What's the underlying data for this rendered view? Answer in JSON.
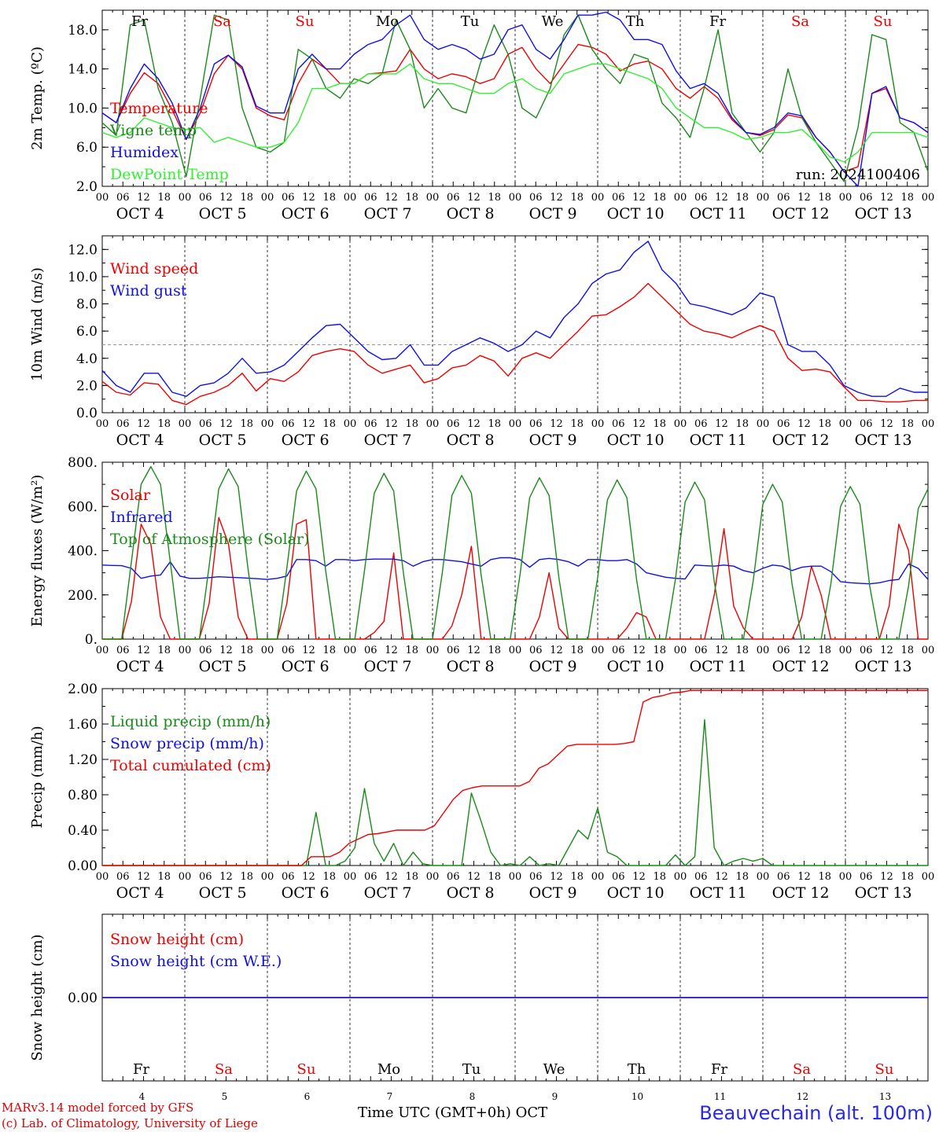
{
  "colors": {
    "red": "#ee0000",
    "blue": "#1010e0",
    "green": "#1a8a1a",
    "lightgreen": "#33ee33",
    "black": "#000000",
    "purple": "#6a0a8a",
    "dashed": "#999999"
  },
  "x_hour_labels": [
    "00",
    "06",
    "12",
    "18"
  ],
  "x_final_hour_label": "00",
  "date_labels": [
    "OCT  4",
    "OCT  5",
    "OCT  6",
    "OCT  7",
    "OCT  8",
    "OCT  9",
    "OCT 10",
    "OCT 11",
    "OCT 12",
    "OCT 13"
  ],
  "day_names": [
    {
      "label": "Fr",
      "color": "black"
    },
    {
      "label": "Sa",
      "color": "red"
    },
    {
      "label": "Su",
      "color": "red"
    },
    {
      "label": "Mo",
      "color": "black"
    },
    {
      "label": "Tu",
      "color": "black"
    },
    {
      "label": "We",
      "color": "black"
    },
    {
      "label": "Th",
      "color": "black"
    },
    {
      "label": "Fr",
      "color": "black"
    },
    {
      "label": "Sa",
      "color": "red"
    },
    {
      "label": "Su",
      "color": "red"
    }
  ],
  "day_numbers": [
    "4",
    "5",
    "6",
    "7",
    "8",
    "9",
    "10",
    "11",
    "12",
    "13"
  ],
  "footer": {
    "model": "MARv3.14 model forced by GFS",
    "lab": "(c) Lab. of Climatology, University of Liege",
    "time_axis": "Time UTC (GMT+0h) OCT",
    "station": "Beauvechain (alt. 100m)"
  },
  "chart_data": [
    {
      "type": "line",
      "ylabel": "2m Temp. (ºC)",
      "ylim": [
        2,
        20
      ],
      "yticks": [
        "2.0",
        "6.0",
        "10.0",
        "14.0",
        "18.0"
      ],
      "ytick_values": [
        2,
        6,
        10,
        14,
        18
      ],
      "show_day_names": true,
      "annotation": "run: 2024100406",
      "x_step_hours": 6,
      "series": [
        {
          "name": "Temperature",
          "color": "red",
          "values": [
            9.5,
            8.5,
            11.5,
            13.6,
            12.5,
            9.8,
            6.8,
            9.5,
            13.5,
            15.4,
            14.0,
            10.0,
            9.2,
            8.8,
            12.5,
            15.0,
            14.0,
            12.5,
            12.5,
            13.5,
            13.6,
            13.8,
            16.0,
            14.0,
            13.0,
            13.5,
            13.2,
            12.5,
            13.0,
            15.5,
            16.2,
            14.0,
            12.5,
            14.5,
            16.5,
            16.2,
            15.5,
            13.8,
            14.5,
            14.8,
            14.0,
            12.0,
            11.0,
            12.2,
            11.0,
            8.8,
            7.5,
            7.2,
            7.8,
            9.3,
            9.0,
            7.0,
            5.5,
            3.5,
            4.0,
            11.5,
            12.0,
            9.0,
            8.5,
            7.5
          ]
        },
        {
          "name": "Vigne temp",
          "color": "green",
          "values": [
            8.5,
            7.2,
            18.5,
            19.0,
            12.0,
            8.5,
            3.0,
            11.0,
            19.5,
            19.0,
            10.0,
            6.0,
            5.5,
            6.5,
            16.0,
            15.0,
            12.0,
            11.0,
            13.0,
            12.5,
            13.5,
            19.0,
            16.0,
            10.0,
            12.0,
            10.0,
            9.5,
            14.5,
            18.5,
            15.5,
            10.0,
            9.0,
            12.0,
            17.5,
            19.5,
            16.0,
            14.0,
            12.5,
            15.5,
            15.0,
            10.5,
            9.0,
            7.0,
            12.0,
            18.0,
            9.5,
            7.5,
            5.5,
            7.5,
            14.0,
            9.0,
            6.5,
            4.5,
            2.5,
            8.0,
            17.5,
            17.0,
            8.5,
            7.5,
            3.5
          ]
        },
        {
          "name": "Humidex",
          "color": "blue",
          "values": [
            9.5,
            8.5,
            12.0,
            14.5,
            13.0,
            10.5,
            6.8,
            10.0,
            14.5,
            15.4,
            14.2,
            10.2,
            9.5,
            9.5,
            14.0,
            15.5,
            14.0,
            14.0,
            15.5,
            16.5,
            17.0,
            18.5,
            19.5,
            17.0,
            16.0,
            16.5,
            16.0,
            15.0,
            15.5,
            18.0,
            18.5,
            16.0,
            15.0,
            17.0,
            19.5,
            19.5,
            19.8,
            19.0,
            17.0,
            17.0,
            16.5,
            13.8,
            12.0,
            12.5,
            11.5,
            9.0,
            7.5,
            7.3,
            8.0,
            9.5,
            9.2,
            7.0,
            5.5,
            3.5,
            2.0,
            11.5,
            12.2,
            9.0,
            8.5,
            7.5
          ]
        },
        {
          "name": "DewPoint Temp",
          "color": "lightgreen",
          "values": [
            7.5,
            7.0,
            7.5,
            9.0,
            8.5,
            8.0,
            7.8,
            8.0,
            6.5,
            7.0,
            6.5,
            6.0,
            6.0,
            6.5,
            8.5,
            12.0,
            12.0,
            12.5,
            12.5,
            13.5,
            13.5,
            13.5,
            14.5,
            13.0,
            12.5,
            12.5,
            12.0,
            11.5,
            11.5,
            12.5,
            13.0,
            12.0,
            11.5,
            13.5,
            14.0,
            14.5,
            14.5,
            14.0,
            13.5,
            13.0,
            12.0,
            10.0,
            9.0,
            8.0,
            8.0,
            7.5,
            6.8,
            7.0,
            7.5,
            7.5,
            7.8,
            6.5,
            5.0,
            4.5,
            5.5,
            7.5,
            7.5,
            7.5,
            7.5,
            7.0
          ]
        }
      ],
      "legend": [
        "Temperature",
        "Vigne temp",
        "Humidex",
        "DewPoint Temp"
      ],
      "legend_colors": [
        "red",
        "green",
        "blue",
        "lightgreen"
      ]
    },
    {
      "type": "line",
      "ylabel": "10m Wind (m/s)",
      "ylim": [
        0,
        13
      ],
      "yticks": [
        "0.0",
        "2.0",
        "4.0",
        "6.0",
        "8.0",
        "10.0",
        "12.0"
      ],
      "ytick_values": [
        0,
        2,
        4,
        6,
        8,
        10,
        12
      ],
      "reference_line": 5,
      "x_step_hours": 6,
      "series": [
        {
          "name": "Wind speed",
          "color": "red",
          "values": [
            2.3,
            1.5,
            1.3,
            2.2,
            2.1,
            0.9,
            0.6,
            1.2,
            1.5,
            2.0,
            2.9,
            1.6,
            2.5,
            2.3,
            3.0,
            4.2,
            4.5,
            4.7,
            4.5,
            3.5,
            2.9,
            3.2,
            3.5,
            2.2,
            2.5,
            3.3,
            3.5,
            4.2,
            3.8,
            2.7,
            4.0,
            4.4,
            4.0,
            5.0,
            6.0,
            7.1,
            7.2,
            7.8,
            8.5,
            9.5,
            8.5,
            7.5,
            6.5,
            6.0,
            5.8,
            5.5,
            6.0,
            6.4,
            6.0,
            4.0,
            3.1,
            3.2,
            3.0,
            1.9,
            0.9,
            0.9,
            0.8,
            0.8,
            0.9,
            0.9
          ]
        },
        {
          "name": "Wind gust",
          "color": "blue",
          "values": [
            3.1,
            2.0,
            1.5,
            2.9,
            2.9,
            1.5,
            1.2,
            2.0,
            2.2,
            2.9,
            4.0,
            2.9,
            3.0,
            3.5,
            4.5,
            5.5,
            6.4,
            6.5,
            5.5,
            4.5,
            3.9,
            4.0,
            5.0,
            3.5,
            3.5,
            4.5,
            5.0,
            5.5,
            5.1,
            4.5,
            5.0,
            6.0,
            5.5,
            7.0,
            8.0,
            9.5,
            10.2,
            10.5,
            11.8,
            12.6,
            10.5,
            9.5,
            8.0,
            7.8,
            7.5,
            7.2,
            7.7,
            8.8,
            8.5,
            5.0,
            4.5,
            4.5,
            3.5,
            2.0,
            1.5,
            1.2,
            1.2,
            1.8,
            1.5,
            1.5
          ]
        }
      ],
      "legend": [
        "Wind speed",
        "Wind gust"
      ],
      "legend_colors": [
        "red",
        "blue"
      ]
    },
    {
      "type": "line",
      "ylabel": "Energy fluxes (W/m²)",
      "ylim": [
        0,
        800
      ],
      "yticks": [
        "0.",
        "200.",
        "400.",
        "600.",
        "800."
      ],
      "ytick_values": [
        0,
        200,
        400,
        600,
        800
      ],
      "x_step_hours": 3,
      "series": [
        {
          "name": "Solar",
          "color": "red",
          "values": [
            0,
            0,
            0,
            170,
            520,
            430,
            100,
            0,
            0,
            0,
            0,
            160,
            550,
            430,
            100,
            0,
            0,
            0,
            0,
            160,
            520,
            540,
            0,
            0,
            0,
            0,
            0,
            0,
            30,
            80,
            390,
            0,
            0,
            0,
            0,
            0,
            60,
            200,
            420,
            0,
            0,
            0,
            0,
            0,
            0,
            100,
            300,
            50,
            0,
            0,
            0,
            0,
            0,
            0,
            50,
            120,
            100,
            0,
            0,
            0,
            0,
            0,
            0,
            200,
            500,
            150,
            50,
            0,
            0,
            0,
            0,
            0,
            100,
            330,
            200,
            0,
            0,
            0,
            0,
            0,
            0,
            150,
            520,
            400,
            0,
            0
          ]
        },
        {
          "name": "Infrared",
          "color": "blue",
          "values": [
            335,
            333,
            332,
            320,
            275,
            285,
            290,
            350,
            285,
            275,
            275,
            278,
            282,
            280,
            278,
            276,
            273,
            270,
            275,
            285,
            360,
            360,
            355,
            330,
            360,
            360,
            355,
            360,
            362,
            362,
            362,
            355,
            330,
            350,
            360,
            360,
            355,
            350,
            340,
            330,
            360,
            368,
            368,
            360,
            325,
            360,
            365,
            360,
            350,
            330,
            360,
            360,
            355,
            355,
            360,
            340,
            300,
            290,
            280,
            275,
            272,
            335,
            332,
            330,
            335,
            330,
            310,
            300,
            320,
            335,
            330,
            310,
            325,
            330,
            330,
            305,
            260,
            255,
            252,
            250,
            255,
            265,
            270,
            340,
            320,
            270
          ]
        },
        {
          "name": "Top of Atmosphere (Solar)",
          "color": "green",
          "values": [
            0,
            0,
            0,
            350,
            700,
            780,
            700,
            350,
            0,
            0,
            0,
            330,
            680,
            770,
            690,
            320,
            0,
            0,
            0,
            320,
            670,
            760,
            680,
            310,
            0,
            0,
            0,
            310,
            660,
            750,
            670,
            300,
            0,
            0,
            0,
            300,
            650,
            740,
            660,
            290,
            0,
            0,
            0,
            290,
            640,
            730,
            650,
            280,
            0,
            0,
            0,
            280,
            630,
            720,
            640,
            270,
            0,
            0,
            0,
            270,
            620,
            710,
            630,
            260,
            0,
            0,
            0,
            260,
            610,
            700,
            620,
            250,
            0,
            0,
            0,
            250,
            600,
            690,
            610,
            240,
            0,
            0,
            0,
            240,
            590,
            680
          ]
        }
      ],
      "legend": [
        "Solar",
        "Infrared",
        "Top of Atmosphere (Solar)"
      ],
      "legend_colors": [
        "red",
        "blue",
        "green"
      ]
    },
    {
      "type": "line",
      "ylabel": "Precip (mm/h)",
      "ylim": [
        0,
        2
      ],
      "yticks": [
        "0.00",
        "0.40",
        "0.80",
        "1.20",
        "1.60",
        "2.00"
      ],
      "ytick_values": [
        0,
        0.4,
        0.8,
        1.2,
        1.6,
        2.0
      ],
      "x_step_hours": 3,
      "series": [
        {
          "name": "Liquid precip (mm/h)",
          "color": "green",
          "values": [
            0,
            0,
            0,
            0,
            0,
            0,
            0,
            0,
            0,
            0,
            0,
            0,
            0,
            0,
            0,
            0,
            0,
            0,
            0,
            0,
            0,
            0,
            0.6,
            0,
            0,
            0.05,
            0.2,
            0.87,
            0.25,
            0.05,
            0.25,
            0,
            0.15,
            0.02,
            0,
            0,
            0,
            0,
            0.82,
            0.5,
            0.15,
            0,
            0.02,
            0,
            0.1,
            0,
            0.02,
            0,
            0.2,
            0.4,
            0.3,
            0.65,
            0.15,
            0.1,
            0,
            0,
            0,
            0,
            0,
            0.12,
            0,
            0.1,
            1.65,
            0.2,
            0,
            0.05,
            0.08,
            0.05,
            0.08,
            0,
            0,
            0,
            0,
            0,
            0,
            0,
            0,
            0,
            0,
            0,
            0,
            0,
            0,
            0,
            0,
            0
          ]
        },
        {
          "name": "Snow precip (mm/h)",
          "color": "blue",
          "values": []
        },
        {
          "name": "Total cumulated (cm)",
          "color": "red",
          "values": [
            0,
            0,
            0,
            0,
            0,
            0,
            0,
            0,
            0,
            0,
            0,
            0,
            0,
            0,
            0,
            0,
            0,
            0,
            0,
            0,
            0,
            0,
            0.1,
            0.1,
            0.1,
            0.15,
            0.25,
            0.3,
            0.35,
            0.36,
            0.38,
            0.4,
            0.4,
            0.4,
            0.4,
            0.45,
            0.6,
            0.75,
            0.85,
            0.88,
            0.9,
            0.9,
            0.9,
            0.9,
            0.9,
            0.95,
            1.1,
            1.15,
            1.25,
            1.35,
            1.37,
            1.37,
            1.37,
            1.37,
            1.37,
            1.38,
            1.4,
            1.85,
            1.9,
            1.92,
            1.95,
            1.96,
            1.98,
            1.98,
            1.98,
            1.98,
            1.98,
            1.98,
            1.98,
            1.98,
            1.98,
            1.98,
            1.98,
            1.98,
            1.98,
            1.98,
            1.98,
            1.98,
            1.98,
            1.98,
            1.98,
            1.98,
            1.98,
            1.98,
            1.98,
            1.98,
            1.98,
            1.98
          ]
        }
      ],
      "legend": [
        "Liquid precip (mm/h)",
        "Snow precip (mm/h)",
        "Total cumulated (cm)"
      ],
      "legend_colors": [
        "green",
        "blue",
        "red"
      ]
    },
    {
      "type": "line",
      "ylabel": "Snow height (cm)",
      "ylim": [
        -1,
        1
      ],
      "yticks": [
        "0.00"
      ],
      "ytick_values": [
        0
      ],
      "x_step_hours": 240,
      "series": [
        {
          "name": "Snow height (cm)",
          "color": "purple",
          "values": [
            0,
            0
          ]
        },
        {
          "name": "Snow height (cm W.E.)",
          "color": "blue",
          "values": [
            0,
            0
          ]
        }
      ],
      "legend": [
        "Snow height (cm)",
        "Snow height (cm W.E.)"
      ],
      "legend_colors": [
        "red",
        "blue"
      ]
    }
  ]
}
